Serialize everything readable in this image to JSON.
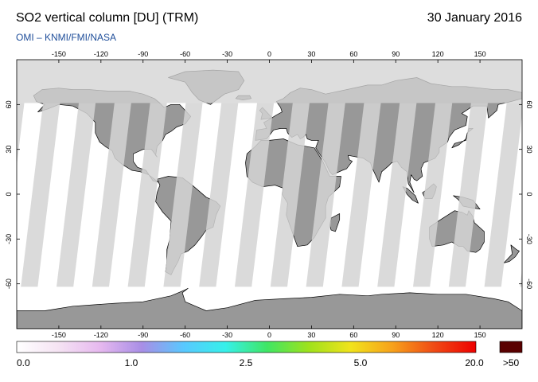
{
  "header": {
    "title": "SO2 vertical column [DU] (TRM)",
    "date": "30 January 2016",
    "source": "OMI  –  KNMI/FMI/NASA"
  },
  "map": {
    "projection": "equirectangular",
    "lon_range": [
      -180,
      180
    ],
    "lat_range": [
      -90,
      90
    ],
    "lon_ticks": [
      -150,
      -120,
      -90,
      -60,
      -30,
      0,
      30,
      60,
      90,
      120,
      150
    ],
    "lat_ticks": [
      60,
      30,
      0,
      -30,
      -60
    ],
    "no_data_color": "#d3d3d3",
    "land_color": "#989898",
    "ocean_color": "#ffffff",
    "polar_night_lat": 61
  },
  "colorbar": {
    "gradient_stops": [
      "#ffffff",
      "#f5e3f3",
      "#e6b8ef",
      "#a88ee6",
      "#59c8ff",
      "#36f0ea",
      "#3fe664",
      "#9fe21b",
      "#f1e31b",
      "#f7a11b",
      "#f04a15",
      "#ee0000"
    ],
    "labels": [
      "0.0",
      "1.0",
      "2.5",
      "5.0",
      "20.0"
    ],
    "overflow_label": ">50",
    "overflow_color": "#5a0000"
  }
}
